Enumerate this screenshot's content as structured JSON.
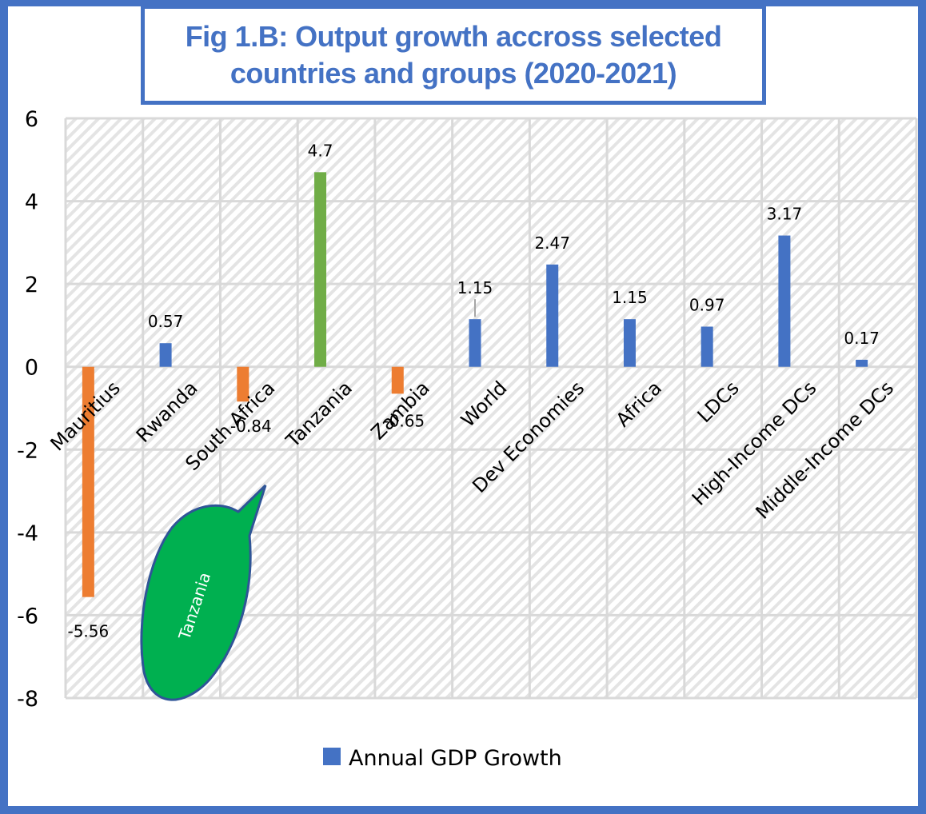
{
  "title": {
    "line1": "Fig 1.B: Output growth accross selected",
    "line2": "countries and groups (2020-2021)"
  },
  "colors": {
    "frame": "#4472C4",
    "title": "#4472C4",
    "positive_bar": "#4472C4",
    "negative_bar": "#ED7D31",
    "highlight_bar": "#70AD47",
    "negative_label": "#FF0000",
    "callout_fill": "#00B050",
    "callout_border": "#2F5597",
    "grid": "#D9D9D9"
  },
  "callout": {
    "text": "Tanzania",
    "points_to": "Tanzania"
  },
  "chart_data": {
    "type": "bar",
    "title": "Fig 1.B: Output growth accross selected countries and groups (2020-2021)",
    "xlabel": "",
    "ylabel": "",
    "ylim": [
      -8,
      6
    ],
    "yticks": [
      6,
      4,
      2,
      0,
      -2,
      -4,
      -6,
      -8
    ],
    "grid": true,
    "legend": {
      "position": "bottom",
      "entries": [
        "Annual GDP Growth"
      ]
    },
    "categories": [
      "Mauritius",
      "Rwanda",
      "South Africa",
      "Tanzania",
      "Zambia",
      "World",
      "Dev Economies",
      "Africa",
      "LDCs",
      "High-Income DCs",
      "Middle-Income DCs"
    ],
    "series": [
      {
        "name": "Annual GDP Growth",
        "values": [
          -5.56,
          0.57,
          -0.84,
          4.7,
          -0.65,
          1.15,
          2.47,
          1.15,
          0.97,
          3.17,
          0.17
        ],
        "labels": [
          "-5.56",
          "0.57",
          "-0.84",
          "4.7",
          "-0.65",
          "1.15",
          "2.47",
          "1.15",
          "0.97",
          "3.17",
          "0.17"
        ],
        "highlight": [
          "negative",
          "positive",
          "negative",
          "highlight",
          "negative",
          "positive",
          "positive",
          "positive",
          "positive",
          "positive",
          "positive"
        ]
      }
    ]
  }
}
